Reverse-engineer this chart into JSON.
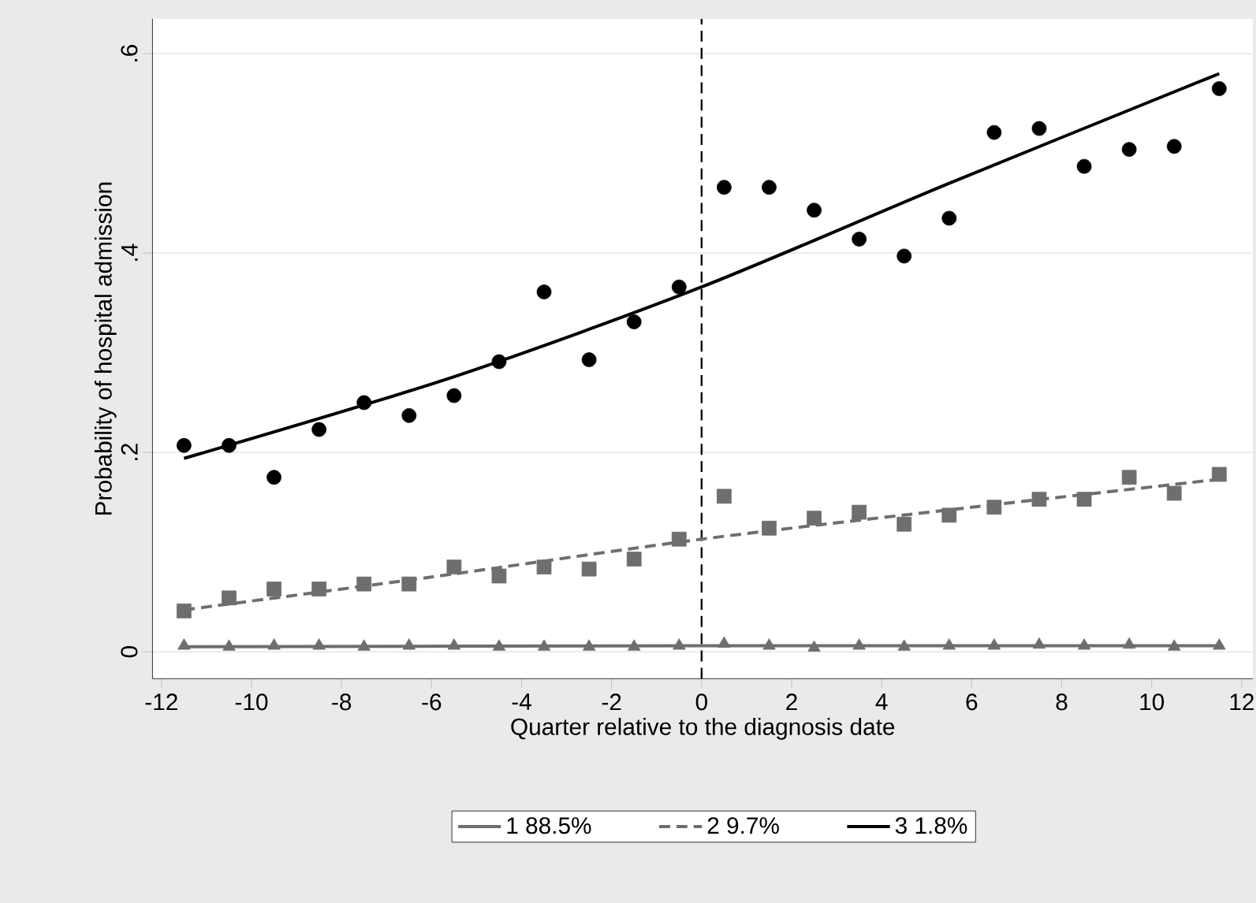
{
  "chart_data": {
    "type": "scatter",
    "xlabel": "Quarter relative to the diagnosis date",
    "ylabel": "Probability of hospital admission",
    "xlim": [
      -12.2,
      12.25
    ],
    "ylim": [
      -0.027,
      0.635
    ],
    "xticks": [
      -12,
      -10,
      -8,
      -6,
      -4,
      -2,
      0,
      2,
      4,
      6,
      8,
      10,
      12
    ],
    "yticks": [
      {
        "value": 0,
        "label": "0"
      },
      {
        "value": 0.2,
        "label": ".2"
      },
      {
        "value": 0.4,
        "label": ".4"
      },
      {
        "value": 0.6,
        "label": ".6"
      }
    ],
    "grid": "y",
    "legend": "bottom",
    "ref_lines": [
      {
        "axis": "x",
        "value": 0,
        "color": "#000000",
        "line_style": "dashed"
      }
    ],
    "series": [
      {
        "marker": "triangle",
        "color": "#6e6e6e",
        "x": [
          -11.5,
          -10.5,
          -9.5,
          -8.5,
          -7.5,
          -6.5,
          -5.5,
          -4.5,
          -3.5,
          -2.5,
          -1.5,
          -0.5,
          0.5,
          1.5,
          2.5,
          3.5,
          4.5,
          5.5,
          6.5,
          7.5,
          8.5,
          9.5,
          10.5,
          11.5
        ],
        "values": [
          0.006,
          0.005,
          0.006,
          0.006,
          0.005,
          0.006,
          0.006,
          0.005,
          0.005,
          0.005,
          0.005,
          0.006,
          0.008,
          0.006,
          0.004,
          0.006,
          0.005,
          0.006,
          0.006,
          0.007,
          0.006,
          0.007,
          0.005,
          0.006
        ]
      },
      {
        "marker": "square",
        "color": "#6e6e6e",
        "x": [
          -11.5,
          -10.5,
          -9.5,
          -8.5,
          -7.5,
          -6.5,
          -5.5,
          -4.5,
          -3.5,
          -2.5,
          -1.5,
          -0.5,
          0.5,
          1.5,
          2.5,
          3.5,
          4.5,
          5.5,
          6.5,
          7.5,
          8.5,
          9.5,
          10.5,
          11.5
        ],
        "values": [
          0.041,
          0.054,
          0.063,
          0.063,
          0.068,
          0.068,
          0.085,
          0.076,
          0.085,
          0.083,
          0.093,
          0.113,
          0.156,
          0.124,
          0.134,
          0.14,
          0.128,
          0.137,
          0.145,
          0.153,
          0.153,
          0.175,
          0.159,
          0.178
        ]
      },
      {
        "marker": "circle",
        "color": "#000000",
        "x": [
          -11.5,
          -10.5,
          -9.5,
          -8.5,
          -7.5,
          -6.5,
          -5.5,
          -4.5,
          -3.5,
          -2.5,
          -1.5,
          -0.5,
          0.5,
          1.5,
          2.5,
          3.5,
          4.5,
          5.5,
          6.5,
          7.5,
          8.5,
          9.5,
          10.5,
          11.5
        ],
        "values": [
          0.207,
          0.207,
          0.175,
          0.223,
          0.25,
          0.237,
          0.257,
          0.291,
          0.361,
          0.293,
          0.331,
          0.366,
          0.466,
          0.466,
          0.443,
          0.414,
          0.397,
          0.435,
          0.521,
          0.525,
          0.487,
          0.504,
          0.507,
          0.565
        ]
      },
      {
        "type": "line",
        "name": "1   88.5%",
        "marker": "none",
        "line_style": "solid",
        "color": "#6e6e6e",
        "x": [
          -11.5,
          0,
          11.5
        ],
        "values": [
          0.005,
          0.006,
          0.006
        ]
      },
      {
        "type": "line",
        "name": "2   9.7%",
        "marker": "none",
        "line_style": "dashed",
        "color": "#6e6e6e",
        "x": [
          -11.5,
          -6,
          0,
          6,
          11.5
        ],
        "values": [
          0.042,
          0.075,
          0.113,
          0.145,
          0.173
        ]
      },
      {
        "type": "line",
        "name": "3   1.8%",
        "marker": "none",
        "line_style": "solid",
        "color": "#000000",
        "x": [
          -11.5,
          -5.5,
          0,
          5.5,
          11.5
        ],
        "values": [
          0.194,
          0.276,
          0.366,
          0.47,
          0.58
        ]
      }
    ]
  }
}
